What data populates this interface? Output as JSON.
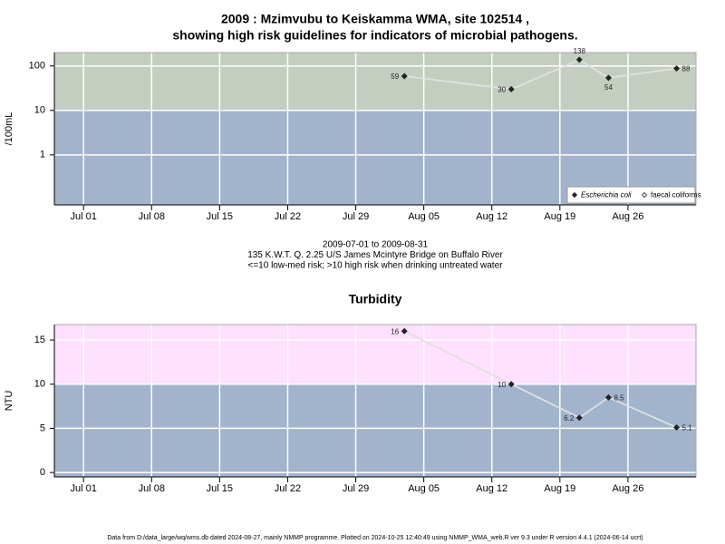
{
  "chart_data": [
    {
      "type": "line",
      "title": [
        "2009 : Mzimvubu to Keiskamma WMA, site 102514 ,",
        "showing high risk guidelines for indicators of microbial pathogens."
      ],
      "ylabel": "/100mL",
      "log_y": true,
      "threshold": 10,
      "above_color": "#c4cec0",
      "below_color": "#a2b3cc",
      "grid": true,
      "legend": "lower right",
      "x": [
        "2009-08-03",
        "2009-08-14",
        "2009-08-21",
        "2009-08-24",
        "2009-08-31"
      ],
      "series": [
        {
          "name": "Escherichia coli",
          "color": "#222222",
          "values": [
            59,
            30,
            138,
            54,
            88
          ]
        },
        {
          "name": "faecal coliforms",
          "color": "#222222",
          "values": [
            null,
            null,
            null,
            null,
            null
          ]
        }
      ],
      "xlim": [
        "2009-06-28",
        "2009-09-02"
      ],
      "xticks": [
        {
          "value": "2009-07-01",
          "label": "Jul 01"
        },
        {
          "value": "2009-07-08",
          "label": "Jul 08"
        },
        {
          "value": "2009-07-15",
          "label": "Jul 15"
        },
        {
          "value": "2009-07-22",
          "label": "Jul 22"
        },
        {
          "value": "2009-07-29",
          "label": "Jul 29"
        },
        {
          "value": "2009-08-05",
          "label": "Aug 05"
        },
        {
          "value": "2009-08-12",
          "label": "Aug 12"
        },
        {
          "value": "2009-08-19",
          "label": "Aug 19"
        },
        {
          "value": "2009-08-26",
          "label": "Aug 26"
        }
      ],
      "ylim": [
        0.075,
        200
      ],
      "yticks": [
        1,
        10,
        100
      ],
      "caption": [
        "2009-07-01 to 2009-08-31",
        "135 K.W.T. Q. 2.25 U/S James Mcintyre Bridge on Buffalo River",
        "<=10 low-med risk; >10 high risk when drinking untreated water"
      ]
    },
    {
      "type": "line",
      "title": [
        "Turbidity"
      ],
      "ylabel": "NTU",
      "log_y": false,
      "threshold": 10,
      "above_color": "#ffe0ff",
      "below_color": "#a2b3cc",
      "grid": true,
      "x": [
        "2009-08-03",
        "2009-08-14",
        "2009-08-21",
        "2009-08-24",
        "2009-08-31"
      ],
      "series": [
        {
          "name": "Turbidity",
          "color": "#222222",
          "values": [
            16,
            10,
            6.2,
            8.5,
            5.1
          ]
        }
      ],
      "xlim": [
        "2009-06-28",
        "2009-09-02"
      ],
      "xticks": [
        {
          "value": "2009-07-01",
          "label": "Jul 01"
        },
        {
          "value": "2009-07-08",
          "label": "Jul 08"
        },
        {
          "value": "2009-07-15",
          "label": "Jul 15"
        },
        {
          "value": "2009-07-22",
          "label": "Jul 22"
        },
        {
          "value": "2009-07-29",
          "label": "Jul 29"
        },
        {
          "value": "2009-08-05",
          "label": "Aug 05"
        },
        {
          "value": "2009-08-12",
          "label": "Aug 12"
        },
        {
          "value": "2009-08-19",
          "label": "Aug 19"
        },
        {
          "value": "2009-08-26",
          "label": "Aug 26"
        }
      ],
      "ylim": [
        -0.5,
        16.75
      ],
      "yticks": [
        0,
        5,
        10,
        15
      ],
      "footer": "Data from D:/data_large/wq/wms.db dated 2024-08-27, mainly NMMP programme. Plotted on 2024-10-25 12:40:49 using NMMP_WMA_web.R ver 9.3 under R version 4.4.1 (2024-06-14 ucrt)"
    }
  ]
}
